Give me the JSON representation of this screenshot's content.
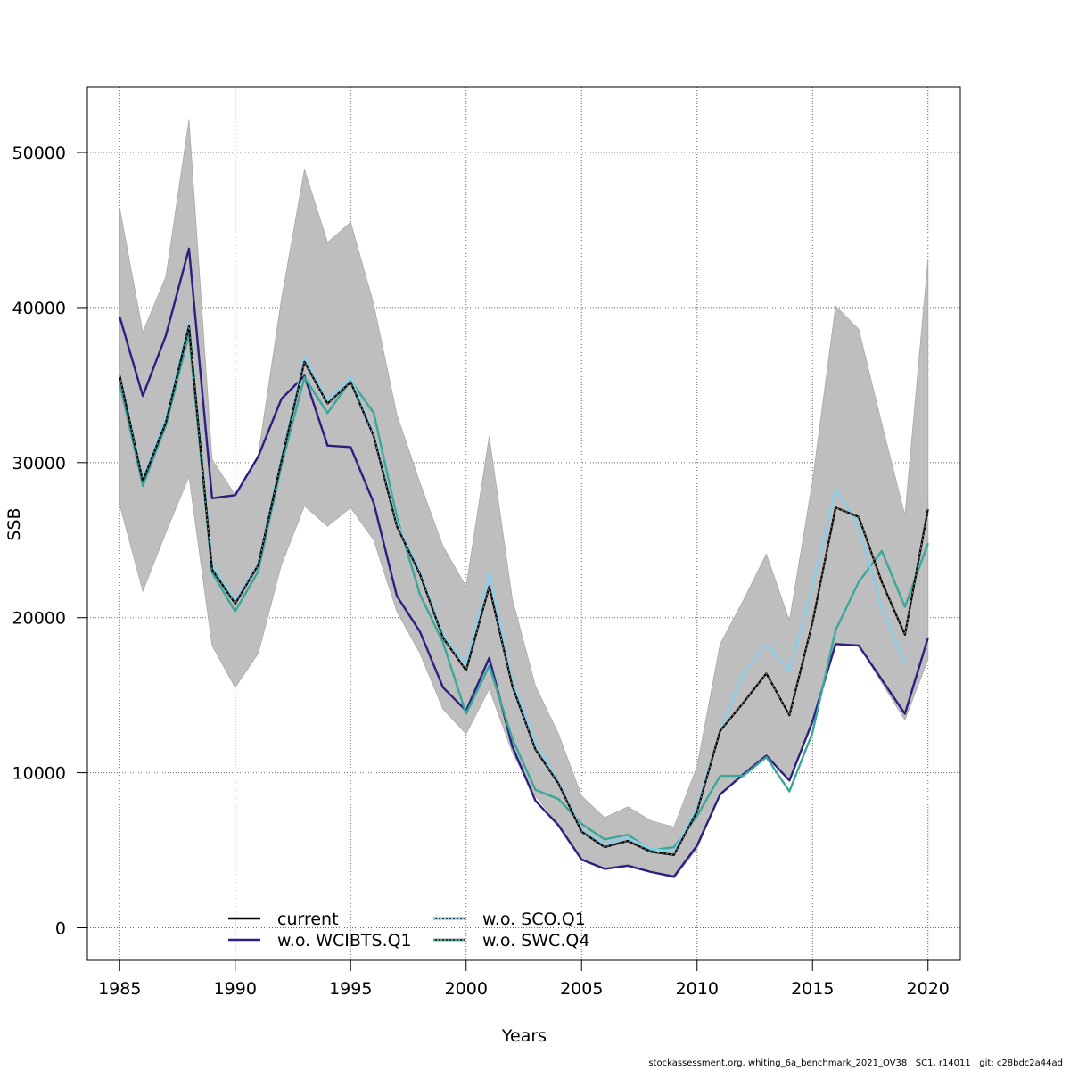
{
  "chart_data": {
    "type": "line",
    "title": "",
    "xlabel": "Years",
    "ylabel": "SSB",
    "xlim": [
      1983.6,
      2021.4
    ],
    "ylim": [
      -2100,
      54200
    ],
    "x_ticks": [
      1985,
      1990,
      1995,
      2000,
      2005,
      2010,
      2015,
      2020
    ],
    "y_ticks": [
      0,
      10000,
      20000,
      30000,
      40000,
      50000
    ],
    "x_tick_labels": [
      "1985",
      "1990",
      "1995",
      "2000",
      "2005",
      "2010",
      "2015",
      "2020"
    ],
    "y_tick_labels": [
      "0",
      "10000",
      "20000",
      "30000",
      "40000",
      "50000"
    ],
    "grid": true,
    "legend_position": "bottom-center",
    "x": [
      1985,
      1986,
      1987,
      1988,
      1989,
      1990,
      1991,
      1992,
      1993,
      1994,
      1995,
      1996,
      1997,
      1998,
      1999,
      2000,
      2001,
      2002,
      2003,
      2004,
      2005,
      2006,
      2007,
      2008,
      2009,
      2010,
      2011,
      2012,
      2013,
      2014,
      2015,
      2016,
      2017,
      2018,
      2019,
      2020
    ],
    "band": {
      "name": "confidence interval (current)",
      "color": "#bebebe",
      "upper": [
        46400,
        38400,
        42000,
        52100,
        30200,
        27900,
        30500,
        40500,
        48900,
        44200,
        45500,
        40200,
        33100,
        28700,
        24600,
        22000,
        31700,
        21200,
        15600,
        12500,
        8500,
        7100,
        7800,
        6900,
        6500,
        10400,
        18300,
        21100,
        24100,
        19800,
        28800,
        40100,
        38600,
        32500,
        26600,
        43100
      ],
      "lower": [
        27300,
        21700,
        25500,
        29100,
        18200,
        15500,
        17700,
        23400,
        27200,
        25900,
        27100,
        25000,
        20400,
        17700,
        14100,
        12500,
        15400,
        11300,
        8500,
        6700,
        4400,
        3800,
        4100,
        3600,
        3200,
        5100,
        8600,
        9800,
        11100,
        9500,
        13200,
        18300,
        18200,
        15800,
        13400,
        17300
      ]
    },
    "series": [
      {
        "name": "current",
        "color": "#000000",
        "style": "solid",
        "values": [
          35600,
          28800,
          32600,
          38800,
          23100,
          20900,
          23400,
          30100,
          36500,
          33800,
          35200,
          31700,
          25900,
          22800,
          18700,
          16600,
          22000,
          15600,
          11500,
          9300,
          6200,
          5200,
          5600,
          4900,
          4700,
          7500,
          12700,
          14500,
          16400,
          13700,
          19700,
          27100,
          26500,
          22300,
          18900,
          27000
        ]
      },
      {
        "name": "w.o. WCIBTS.Q1",
        "color": "#2e1e82",
        "style": "solid",
        "values": [
          39400,
          34300,
          38200,
          43800,
          27700,
          27900,
          30400,
          34100,
          35600,
          31100,
          31000,
          27400,
          21400,
          19100,
          15500,
          14000,
          17400,
          11700,
          8200,
          6600,
          4400,
          3800,
          4000,
          3600,
          3300,
          5300,
          8600,
          9900,
          11100,
          9500,
          13300,
          18300,
          18200,
          16000,
          13800,
          18700
        ]
      },
      {
        "name": "w.o. SCO.Q1",
        "color": "#87ceeb",
        "style": "dotted",
        "values": [
          35600,
          29000,
          32900,
          39000,
          23400,
          21100,
          23500,
          30300,
          36800,
          34000,
          35500,
          31800,
          26100,
          23000,
          18900,
          17000,
          22900,
          15900,
          12000,
          9400,
          6300,
          5400,
          5800,
          5100,
          4900,
          7800,
          12700,
          16400,
          18300,
          16600,
          22000,
          28300,
          25900,
          20600,
          17100,
          null
        ]
      },
      {
        "name": "w.o. SWC.Q4",
        "color": "#3aa898",
        "style": "solid",
        "values": [
          35100,
          28500,
          32400,
          38300,
          22900,
          20400,
          23000,
          29800,
          35500,
          33200,
          35300,
          33200,
          26500,
          21500,
          18400,
          13800,
          16900,
          12200,
          8900,
          8300,
          6700,
          5700,
          6000,
          5000,
          5200,
          7200,
          9800,
          9800,
          11000,
          8800,
          12600,
          19200,
          22300,
          24300,
          20700,
          24800
        ]
      }
    ],
    "legend": [
      {
        "label": "current",
        "color": "#000000",
        "style": "solid"
      },
      {
        "label": "w.o. WCIBTS.Q1",
        "color": "#2e1e82",
        "style": "solid"
      },
      {
        "label": "w.o. SCO.Q1",
        "color": "#87ceeb",
        "style": "dotted"
      },
      {
        "label": "w.o. SWC.Q4",
        "color": "#3aa898",
        "style": "solid"
      }
    ]
  },
  "footer": {
    "text": "stockassessment.org, whiting_6a_benchmark_2021_OV38   SC1, r14011 , git: c28bdc2a44ad"
  }
}
